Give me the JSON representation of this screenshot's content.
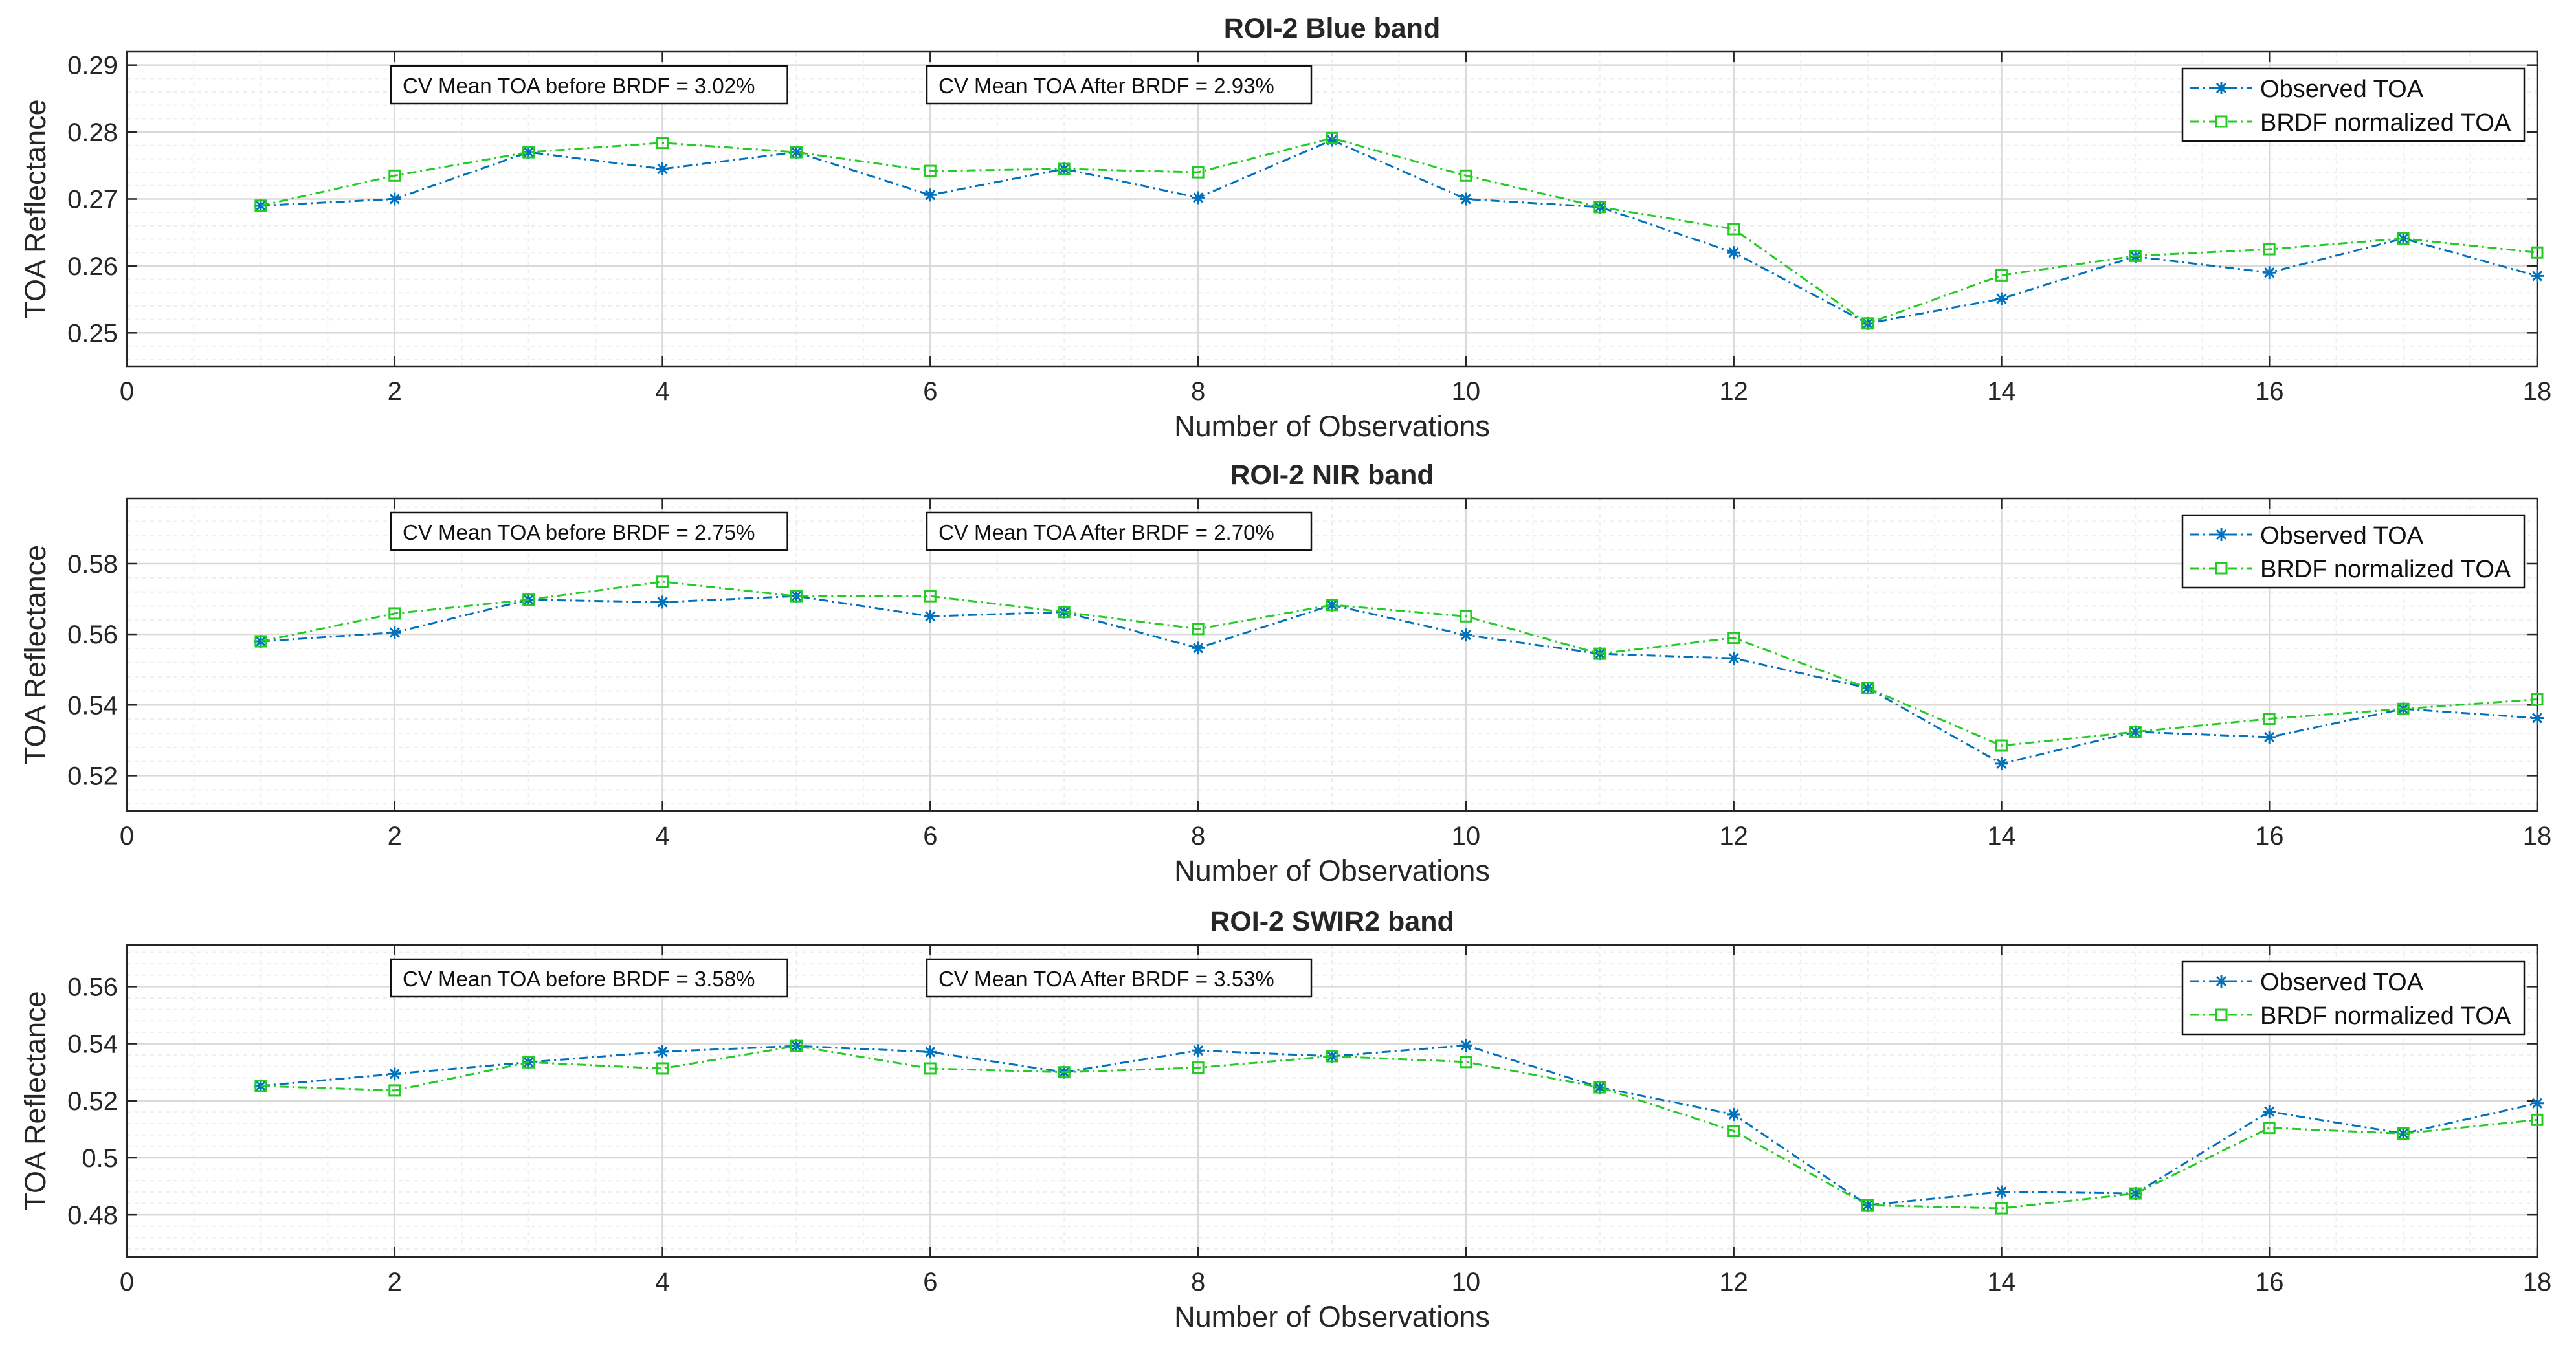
{
  "colors": {
    "observed": "#0072BD",
    "brdf": "#22CC22",
    "axis": "#262626",
    "grid_major": "#d9d9d9",
    "grid_minor": "#eeeeee"
  },
  "chart_data": [
    {
      "type": "line",
      "title": "ROI-2 Blue band",
      "xlabel": "Number of Observations",
      "ylabel": "TOA Reflectance",
      "xlim": [
        0,
        18
      ],
      "ylim": [
        0.245,
        0.292
      ],
      "xticks": [
        0,
        2,
        4,
        6,
        8,
        10,
        12,
        14,
        16,
        18
      ],
      "xtick_labels": [
        "0",
        "2",
        "4",
        "6",
        "8",
        "10",
        "12",
        "14",
        "16",
        "18"
      ],
      "yticks": [
        0.25,
        0.26,
        0.27,
        0.28,
        0.29
      ],
      "ytick_labels": [
        "0.25",
        "0.26",
        "0.27",
        "0.28",
        "0.29"
      ],
      "annotations": [
        "CV Mean TOA before BRDF = 3.02%",
        "CV Mean TOA After BRDF = 2.93%"
      ],
      "legend": [
        "Observed TOA",
        "BRDF normalized TOA"
      ],
      "grid": true,
      "x": [
        1,
        2,
        3,
        4,
        5,
        6,
        7,
        8,
        9,
        10,
        11,
        12,
        13,
        14,
        15,
        16,
        17,
        18
      ],
      "series": [
        {
          "name": "Observed TOA",
          "values": [
            0.269,
            0.27,
            0.277,
            0.2745,
            0.277,
            0.2706,
            0.2745,
            0.2702,
            0.2788,
            0.27,
            0.2688,
            0.262,
            0.2514,
            0.2551,
            0.2614,
            0.259,
            0.2641,
            0.2585
          ]
        },
        {
          "name": "BRDF normalized TOA",
          "values": [
            0.269,
            0.2735,
            0.277,
            0.2784,
            0.277,
            0.2742,
            0.2745,
            0.274,
            0.2791,
            0.2735,
            0.2688,
            0.2655,
            0.2514,
            0.2586,
            0.2615,
            0.2625,
            0.2641,
            0.262
          ]
        }
      ]
    },
    {
      "type": "line",
      "title": "ROI-2 NIR band",
      "xlabel": "Number of Observations",
      "ylabel": "TOA Reflectance",
      "xlim": [
        0,
        18
      ],
      "ylim": [
        0.51,
        0.5985
      ],
      "xticks": [
        0,
        2,
        4,
        6,
        8,
        10,
        12,
        14,
        16,
        18
      ],
      "xtick_labels": [
        "0",
        "2",
        "4",
        "6",
        "8",
        "10",
        "12",
        "14",
        "16",
        "18"
      ],
      "yticks": [
        0.52,
        0.54,
        0.56,
        0.58
      ],
      "ytick_labels": [
        "0.52",
        "0.54",
        "0.56",
        "0.58"
      ],
      "annotations": [
        "CV Mean TOA before BRDF = 2.75%",
        "CV Mean TOA After BRDF = 2.70%"
      ],
      "legend": [
        "Observed TOA",
        "BRDF normalized TOA"
      ],
      "grid": true,
      "x": [
        1,
        2,
        3,
        4,
        5,
        6,
        7,
        8,
        9,
        10,
        11,
        12,
        13,
        14,
        15,
        16,
        17,
        18
      ],
      "series": [
        {
          "name": "Observed TOA",
          "values": [
            0.558,
            0.5605,
            0.5698,
            0.5691,
            0.5708,
            0.5651,
            0.5663,
            0.5561,
            0.5683,
            0.5598,
            0.5545,
            0.5532,
            0.5448,
            0.5234,
            0.5324,
            0.5309,
            0.5389,
            0.5363
          ]
        },
        {
          "name": "BRDF normalized TOA",
          "values": [
            0.558,
            0.5659,
            0.5698,
            0.5749,
            0.5708,
            0.5708,
            0.5663,
            0.5615,
            0.5683,
            0.5651,
            0.5545,
            0.559,
            0.5448,
            0.5285,
            0.5324,
            0.5361,
            0.5389,
            0.5416
          ]
        }
      ]
    },
    {
      "type": "line",
      "title": "ROI-2 SWIR2 band",
      "xlabel": "Number of Observations",
      "ylabel": "TOA Reflectance",
      "xlim": [
        0,
        18
      ],
      "ylim": [
        0.4653,
        0.5746
      ],
      "xticks": [
        0,
        2,
        4,
        6,
        8,
        10,
        12,
        14,
        16,
        18
      ],
      "xtick_labels": [
        "0",
        "2",
        "4",
        "6",
        "8",
        "10",
        "12",
        "14",
        "16",
        "18"
      ],
      "yticks": [
        0.48,
        0.5,
        0.52,
        0.54,
        0.56
      ],
      "ytick_labels": [
        "0.48",
        "0.5",
        "0.52",
        "0.54",
        "0.56"
      ],
      "annotations": [
        "CV Mean TOA before BRDF = 3.58%",
        "CV Mean TOA After BRDF = 3.53%"
      ],
      "legend": [
        "Observed TOA",
        "BRDF normalized TOA"
      ],
      "grid": true,
      "x": [
        1,
        2,
        3,
        4,
        5,
        6,
        7,
        8,
        9,
        10,
        11,
        12,
        13,
        14,
        15,
        16,
        17,
        18
      ],
      "series": [
        {
          "name": "Observed TOA",
          "values": [
            0.5252,
            0.5294,
            0.5335,
            0.5372,
            0.5392,
            0.5371,
            0.53,
            0.5376,
            0.5356,
            0.5394,
            0.5247,
            0.5152,
            0.4834,
            0.4881,
            0.4875,
            0.5162,
            0.5085,
            0.5191
          ]
        },
        {
          "name": "BRDF normalized TOA",
          "values": [
            0.5252,
            0.5236,
            0.5335,
            0.5313,
            0.5392,
            0.5313,
            0.53,
            0.5316,
            0.5356,
            0.5336,
            0.5247,
            0.5094,
            0.4834,
            0.4823,
            0.4875,
            0.5105,
            0.5085,
            0.5133
          ]
        }
      ]
    }
  ]
}
